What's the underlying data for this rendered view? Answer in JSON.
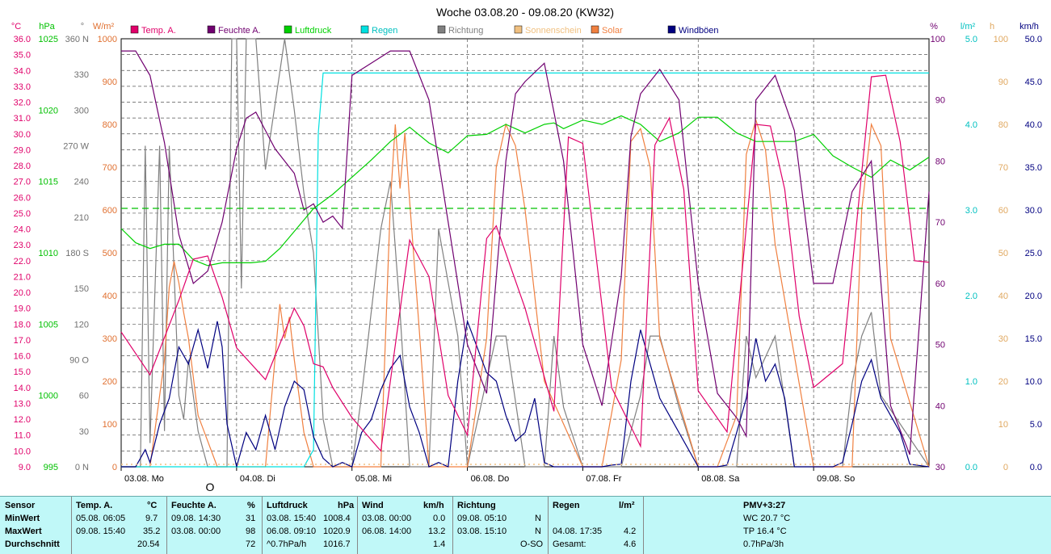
{
  "title": "Woche 03.08.20 - 09.08.20 (KW32)",
  "chart_data": {
    "type": "line",
    "title": "Woche 03.08.20 - 09.08.20 (KW32)",
    "x_days": [
      "03.08. Mo",
      "04.08. Di",
      "05.08. Mi",
      "06.08. Do",
      "07.08. Fr",
      "08.08. Sa",
      "09.08. So"
    ],
    "x_range_hours": [
      0,
      168
    ],
    "legend": [
      {
        "name": "Temp. A.",
        "color": "#e0006a"
      },
      {
        "name": "Feuchte A.",
        "color": "#700070"
      },
      {
        "name": "Luftdruck",
        "color": "#00d000"
      },
      {
        "name": "Regen",
        "color": "#00e0e0"
      },
      {
        "name": "Richtung",
        "color": "#808080"
      },
      {
        "name": "Sonnenschein",
        "color": "#f0c080"
      },
      {
        "name": "Solar",
        "color": "#f08040"
      },
      {
        "name": "Windböen",
        "color": "#000080"
      }
    ],
    "axes": {
      "temp": {
        "unit": "°C",
        "min": 9.0,
        "max": 36.0,
        "ticks": [
          "36.0",
          "35.0",
          "34.0",
          "33.0",
          "32.0",
          "31.0",
          "30.0",
          "29.0",
          "28.0",
          "27.0",
          "26.0",
          "25.0",
          "24.0",
          "23.0",
          "22.0",
          "21.0",
          "20.0",
          "19.0",
          "18.0",
          "17.0",
          "16.0",
          "15.0",
          "14.0",
          "13.0",
          "12.0",
          "11.0",
          "10.0",
          "9.0"
        ]
      },
      "pressure": {
        "unit": "hPa",
        "min": 995,
        "max": 1025,
        "ticks": [
          "1025",
          "1020",
          "1015",
          "1010",
          "1005",
          "1000",
          "995"
        ]
      },
      "direction": {
        "unit": "°",
        "ticks": [
          "360 N",
          "330",
          "300",
          "270 W",
          "240",
          "210",
          "180 S",
          "150",
          "120",
          "90 O",
          "60",
          "30",
          "0 N"
        ]
      },
      "solar": {
        "unit": "W/m²",
        "min": 0,
        "max": 1000,
        "ticks": [
          "1000",
          "900",
          "800",
          "700",
          "600",
          "500",
          "400",
          "300",
          "200",
          "100",
          "0"
        ]
      },
      "humidity": {
        "unit": "%",
        "min": 30,
        "max": 100,
        "ticks": [
          "100",
          "90",
          "80",
          "70",
          "60",
          "50",
          "40",
          "30"
        ]
      },
      "rain": {
        "unit": "l/m²",
        "min": 0,
        "max": 5,
        "ticks": [
          "5.0",
          "4.0",
          "3.0",
          "2.0",
          "1.0",
          "0.0"
        ]
      },
      "sunshine": {
        "unit": "h",
        "min": 0,
        "max": 100,
        "ticks": [
          "100",
          "90",
          "80",
          "70",
          "60",
          "50",
          "40",
          "30",
          "20",
          "10",
          "0"
        ]
      },
      "wind": {
        "unit": "km/h",
        "min": 0,
        "max": 50,
        "ticks": [
          "50.0",
          "45.0",
          "40.0",
          "35.0",
          "30.0",
          "25.0",
          "20.0",
          "15.0",
          "10.0",
          "5.0",
          "0.0"
        ]
      }
    },
    "series": [
      {
        "name": "Temp. A.",
        "axis": "temp",
        "color": "#e0006a",
        "x": [
          0,
          6,
          12,
          15,
          18,
          21,
          24,
          30,
          36,
          38,
          40,
          42,
          44,
          48,
          54,
          60,
          64,
          68,
          72,
          76,
          78,
          84,
          90,
          93,
          96,
          102,
          108,
          111,
          114,
          117,
          120,
          126,
          132,
          135,
          138,
          141,
          144,
          150,
          156,
          159,
          162,
          165,
          168
        ],
        "y": [
          17.5,
          14.8,
          19.5,
          22.1,
          22.3,
          19.7,
          16.5,
          14.5,
          19.0,
          17.9,
          15.5,
          15.3,
          14.0,
          12.1,
          10.0,
          23.3,
          21.0,
          13.5,
          11.0,
          23.4,
          24.2,
          19.0,
          12.5,
          29.8,
          29.4,
          14.0,
          10.3,
          29.3,
          31.0,
          26.5,
          13.8,
          11.2,
          30.6,
          30.5,
          26.5,
          18.5,
          14.0,
          15.5,
          33.6,
          33.7,
          29.5,
          22.0,
          21.9
        ]
      },
      {
        "name": "Feuchte A.",
        "axis": "humidity",
        "color": "#700070",
        "x": [
          0,
          3,
          6,
          9,
          12,
          15,
          18,
          21,
          24,
          26,
          28,
          30,
          32,
          36,
          38,
          40,
          42,
          44,
          46,
          48,
          52,
          56,
          60,
          64,
          68,
          72,
          76,
          80,
          82,
          84,
          88,
          92,
          96,
          100,
          104,
          106,
          108,
          112,
          116,
          120,
          124,
          128,
          130,
          132,
          136,
          140,
          144,
          148,
          152,
          156,
          160,
          164,
          168
        ],
        "y": [
          98,
          98,
          94,
          83,
          68,
          60,
          62,
          70,
          82,
          87,
          88,
          85,
          82,
          78,
          72,
          73,
          70,
          71,
          69,
          94,
          96,
          98,
          98,
          90,
          70,
          50,
          42,
          80,
          91,
          93,
          96,
          80,
          50,
          40,
          61,
          84,
          91,
          95,
          90,
          60,
          42,
          38,
          35,
          90,
          94,
          85,
          60,
          60,
          75,
          80,
          40,
          32,
          75
        ]
      },
      {
        "name": "Luftdruck",
        "axis": "pressure",
        "color": "#00d000",
        "x": [
          0,
          3,
          6,
          9,
          12,
          15,
          18,
          21,
          24,
          27,
          30,
          33,
          36,
          40,
          44,
          48,
          52,
          56,
          60,
          64,
          68,
          72,
          76,
          80,
          84,
          88,
          90,
          92,
          96,
          100,
          104,
          108,
          112,
          116,
          120,
          124,
          128,
          132,
          136,
          140,
          144,
          148,
          152,
          156,
          160,
          164,
          168
        ],
        "y": [
          1011.7,
          1010.7,
          1010.3,
          1010.6,
          1010.6,
          1009.5,
          1009.1,
          1009.3,
          1009.3,
          1009.3,
          1009.4,
          1010.3,
          1011.5,
          1013.1,
          1014.1,
          1015.3,
          1016.5,
          1017.8,
          1018.8,
          1017.7,
          1017.0,
          1018.2,
          1018.3,
          1019.0,
          1018.4,
          1019.0,
          1019.1,
          1018.7,
          1019.3,
          1019.0,
          1019.6,
          1019.0,
          1017.8,
          1018.4,
          1019.5,
          1019.5,
          1018.4,
          1017.8,
          1017.8,
          1017.8,
          1018.3,
          1016.8,
          1016.0,
          1015.3,
          1016.5,
          1015.8,
          1016.7
        ]
      },
      {
        "name": "Regen",
        "axis": "rain",
        "color": "#00e0e0",
        "x": [
          0,
          38,
          39,
          40,
          41,
          42,
          168
        ],
        "y": [
          0,
          0,
          0.1,
          0.2,
          3.9,
          4.6,
          4.6
        ]
      },
      {
        "name": "Solar",
        "axis": "solar",
        "color": "#f08040",
        "x": [
          0,
          6,
          9,
          10,
          11,
          12,
          13,
          14,
          16,
          18,
          20,
          24,
          30,
          33,
          34,
          35,
          36,
          38,
          40,
          48,
          54,
          56,
          57,
          58,
          59,
          60,
          62,
          64,
          66,
          72,
          76,
          78,
          80,
          82,
          84,
          88,
          96,
          100,
          104,
          106,
          108,
          110,
          112,
          120,
          124,
          128,
          130,
          132,
          134,
          136,
          144,
          148,
          152,
          154,
          156,
          158,
          160,
          168
        ],
        "y": [
          0,
          0,
          250,
          420,
          480,
          430,
          360,
          300,
          120,
          60,
          0,
          0,
          0,
          380,
          300,
          350,
          250,
          80,
          0,
          0,
          0,
          620,
          800,
          650,
          780,
          620,
          320,
          0,
          0,
          0,
          300,
          700,
          800,
          750,
          600,
          200,
          0,
          0,
          250,
          760,
          790,
          700,
          300,
          0,
          0,
          120,
          730,
          810,
          740,
          520,
          0,
          0,
          0,
          600,
          800,
          750,
          300,
          0
        ]
      },
      {
        "name": "Richtung",
        "axis": "direction",
        "color": "#808080",
        "x": [
          0,
          4,
          5,
          6,
          8,
          9,
          10,
          12,
          13,
          14,
          16,
          18,
          20,
          22,
          23,
          24,
          25,
          26,
          28,
          30,
          34,
          36,
          38,
          40,
          42,
          44,
          46,
          48,
          50,
          54,
          56,
          58,
          60,
          64,
          66,
          70,
          72,
          78,
          80,
          84,
          88,
          90,
          92,
          96,
          104,
          108,
          110,
          112,
          116,
          120,
          128,
          130,
          132,
          136,
          140,
          144,
          150,
          152,
          154,
          156,
          158,
          168
        ],
        "y": [
          0,
          0,
          270,
          20,
          270,
          30,
          270,
          60,
          40,
          90,
          30,
          0,
          0,
          0,
          360,
          360,
          150,
          360,
          360,
          250,
          360,
          300,
          230,
          180,
          40,
          0,
          0,
          0,
          60,
          200,
          240,
          130,
          0,
          0,
          200,
          110,
          0,
          110,
          110,
          0,
          0,
          110,
          50,
          0,
          0,
          60,
          110,
          110,
          50,
          0,
          0,
          110,
          75,
          110,
          0,
          0,
          0,
          70,
          110,
          130,
          60,
          0
        ]
      },
      {
        "name": "Windböen",
        "axis": "wind",
        "color": "#000080",
        "x": [
          0,
          3,
          5,
          6,
          8,
          10,
          12,
          14,
          16,
          18,
          20,
          21,
          22,
          24,
          26,
          28,
          30,
          32,
          34,
          36,
          38,
          40,
          42,
          44,
          46,
          48,
          50,
          52,
          54,
          56,
          58,
          60,
          62,
          64,
          66,
          68,
          70,
          72,
          76,
          78,
          80,
          82,
          84,
          86,
          88,
          90,
          96,
          100,
          102,
          104,
          106,
          108,
          110,
          112,
          120,
          124,
          126,
          128,
          130,
          132,
          134,
          136,
          138,
          140,
          144,
          148,
          150,
          152,
          154,
          156,
          158,
          160,
          162,
          164,
          168
        ],
        "y": [
          0,
          0,
          2.0,
          0.5,
          5.0,
          8.0,
          14.0,
          12.0,
          16.0,
          11.5,
          17.0,
          14.0,
          5.0,
          0,
          4.0,
          2.0,
          6.0,
          2.0,
          7.0,
          10.0,
          9.0,
          3.5,
          1.0,
          0,
          0.5,
          0,
          4.0,
          5.5,
          9.0,
          11.5,
          13.0,
          7.0,
          4.0,
          0,
          0.5,
          0,
          10.0,
          17.0,
          11.0,
          10.0,
          6.0,
          3.0,
          4.0,
          8.0,
          0.5,
          0,
          0,
          0,
          0.2,
          0.3,
          10.0,
          16.0,
          12.0,
          8.0,
          0,
          0,
          0.2,
          4.0,
          8.0,
          15.0,
          10.0,
          12.0,
          8.0,
          0,
          0,
          0,
          0.5,
          5.0,
          10.0,
          12.5,
          8.0,
          6.0,
          4.0,
          0.3,
          0
        ]
      },
      {
        "name": "Temp-Hilfslinie",
        "axis": "temp",
        "color": "#00c000",
        "dashed": true,
        "x": [
          0,
          168
        ],
        "y": [
          25.3,
          25.3
        ]
      }
    ],
    "xlabel": "",
    "ylabel": "",
    "grid": true,
    "legend_position": "top"
  },
  "table": {
    "headers": {
      "sensor": "Sensor",
      "temp": "Temp. A.",
      "temp_unit": "°C",
      "hum": "Feuchte A.",
      "hum_unit": "%",
      "press": "Luftdruck",
      "press_unit": "hPa",
      "wind": "Wind",
      "wind_unit": "km/h",
      "dir": "Richtung",
      "rain": "Regen",
      "rain_unit": "l/m²",
      "pmv": "PMV+3:27"
    },
    "rows": {
      "min_label": "MinWert",
      "max_label": "MaxWert",
      "avg_label": "Durchschnitt"
    },
    "temp": {
      "min_time": "05.08.  06:05",
      "min_val": "9.7",
      "max_time": "09.08.  15:40",
      "max_val": "35.2",
      "avg": "20.54"
    },
    "hum": {
      "min_time": "09.08.  14:30",
      "min_val": "31",
      "max_time": "03.08.  00:00",
      "max_val": "98",
      "avg": "72"
    },
    "press": {
      "min_time": "03.08.  15:40",
      "min_val": "1008.4",
      "max_time": "06.08.  09:10",
      "max_val": "1020.9",
      "avg_trend": "^0.7hPa/h",
      "avg": "1016.7"
    },
    "wind": {
      "min_time": "03.08.  00:00",
      "min_val": "0.0",
      "max_time": "06.08.  14:00",
      "max_val": "13.2",
      "avg": "1.4"
    },
    "dir": {
      "min_time": "09.08.  05:10",
      "min_val": "N",
      "max_time": "03.08.  15:10",
      "max_val": "N",
      "avg": "O-SO"
    },
    "rain": {
      "max_time": "04.08.  17:35",
      "max_val": "4.2",
      "total_label": "Gesamt:",
      "total": "4.6"
    },
    "pmv": {
      "wc": "WC 20.7 °C",
      "tp": "TP 16.4 °C",
      "trend": "0.7hPa/3h"
    }
  },
  "marker": "O"
}
